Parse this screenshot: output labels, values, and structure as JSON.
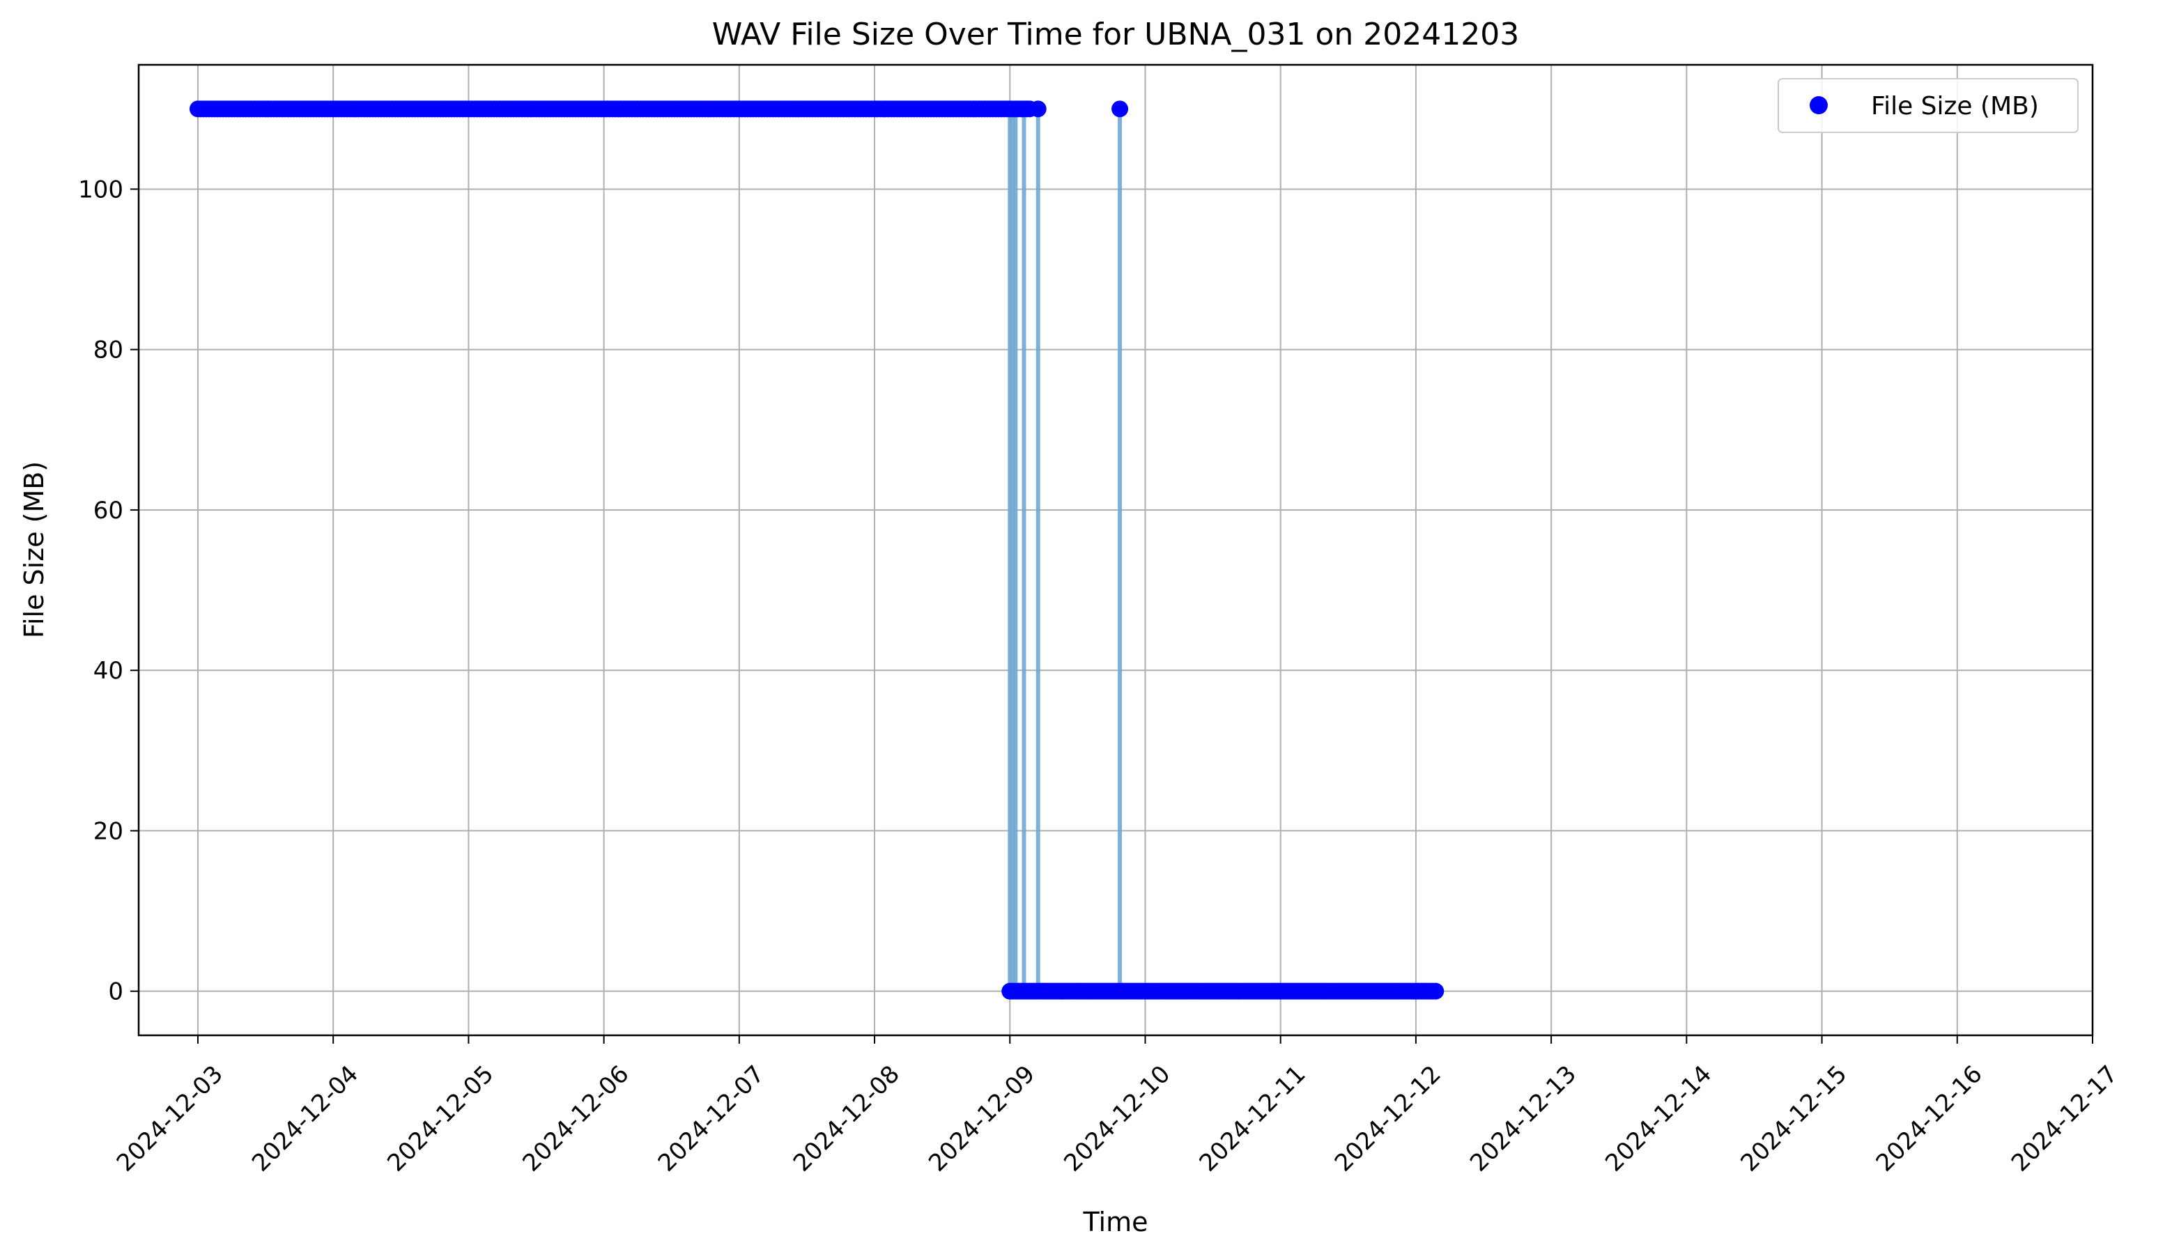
{
  "chart_data": {
    "type": "scatter",
    "title": "WAV File Size Over Time for UBNA_031 on 20241203",
    "xlabel": "Time",
    "ylabel": "File Size (MB)",
    "x_axis_type": "date",
    "xlim": [
      "2024-12-02T13:30",
      "2024-12-17T00:00"
    ],
    "ylim": [
      -5.5,
      115.5
    ],
    "x_ticks": [
      "2024-12-03",
      "2024-12-04",
      "2024-12-05",
      "2024-12-06",
      "2024-12-07",
      "2024-12-08",
      "2024-12-09",
      "2024-12-10",
      "2024-12-11",
      "2024-12-12",
      "2024-12-13",
      "2024-12-14",
      "2024-12-15",
      "2024-12-16",
      "2024-12-17"
    ],
    "y_ticks": [
      0,
      20,
      40,
      60,
      80,
      100
    ],
    "grid": true,
    "legend_position": "top-right",
    "marker_color": "#0000ff",
    "line_color": "#6fa8d6",
    "series": [
      {
        "name": "File Size (MB)",
        "segments": [
          {
            "start": "2024-12-03T00:00",
            "end": "2024-12-09T03:30",
            "interval_minutes": 30,
            "value": 110
          },
          {
            "start": "2024-12-09T00:00",
            "end": "2024-12-12T03:30",
            "interval_minutes": 30,
            "value": 0
          }
        ],
        "points": [
          {
            "x": "2024-12-09T05:00",
            "y": 110
          },
          {
            "x": "2024-12-09T19:30",
            "y": 110
          }
        ],
        "drop_lines": [
          {
            "x": "2024-12-09T00:00",
            "from": 110,
            "to": 0
          },
          {
            "x": "2024-12-09T00:30",
            "from": 110,
            "to": 0
          },
          {
            "x": "2024-12-09T01:00",
            "from": 110,
            "to": 0
          },
          {
            "x": "2024-12-09T02:30",
            "from": 110,
            "to": 0
          },
          {
            "x": "2024-12-09T05:00",
            "from": 110,
            "to": 0
          },
          {
            "x": "2024-12-09T19:30",
            "from": 110,
            "to": 0
          }
        ]
      }
    ]
  }
}
